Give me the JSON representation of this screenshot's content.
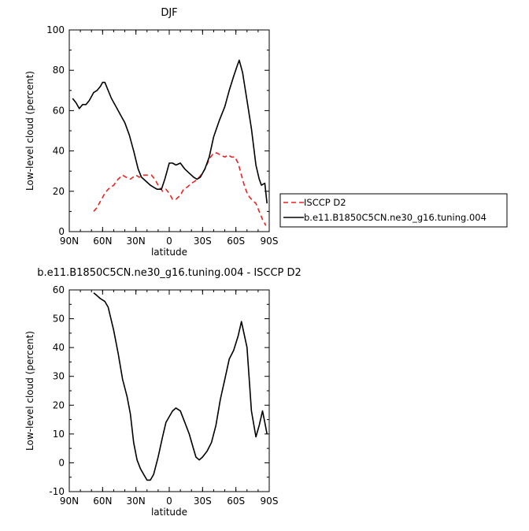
{
  "chart_data": [
    {
      "type": "line",
      "title": "DJF",
      "xlabel": "latitude",
      "ylabel": "Low-level cloud (percent)",
      "xlim": [
        90,
        -90
      ],
      "ylim": [
        0,
        100
      ],
      "x_ticks": [
        {
          "value": 90,
          "label": "90N"
        },
        {
          "value": 60,
          "label": "60N"
        },
        {
          "value": 30,
          "label": "30N"
        },
        {
          "value": 0,
          "label": "0"
        },
        {
          "value": -30,
          "label": "30S"
        },
        {
          "value": -60,
          "label": "60S"
        },
        {
          "value": -90,
          "label": "90S"
        }
      ],
      "y_ticks": [
        0,
        20,
        40,
        60,
        80,
        100
      ],
      "legend_position": "right",
      "series": [
        {
          "name": "ISCCP D2",
          "color": "#e8231f",
          "dash": "dashed",
          "x": [
            68,
            65,
            62,
            58,
            55,
            50,
            46,
            42,
            39,
            35,
            30,
            27,
            23,
            19,
            16,
            13,
            10,
            6,
            3,
            0,
            -3,
            -6,
            -10,
            -13,
            -16,
            -20,
            -23,
            -27,
            -30,
            -33,
            -36,
            -40,
            -43,
            -46,
            -50,
            -53,
            -56,
            -59,
            -62,
            -65,
            -68,
            -71,
            -74,
            -78,
            -81,
            -84,
            -87
          ],
          "y": [
            10,
            12,
            15,
            19,
            21,
            23,
            26,
            28,
            27,
            26,
            28,
            27,
            28,
            28,
            28,
            26,
            23,
            20,
            21,
            19,
            16,
            16,
            18,
            21,
            22,
            24,
            25,
            27,
            29,
            32,
            36,
            39,
            39,
            38,
            37,
            38,
            37,
            37,
            34,
            28,
            22,
            18,
            16,
            14,
            10,
            6,
            3
          ]
        },
        {
          "name": "b.e11.B1850C5CN.ne30_g16.tuning.004",
          "color": "#000000",
          "dash": "solid",
          "x": [
            87,
            84,
            81,
            78,
            75,
            72,
            68,
            65,
            62,
            60,
            58,
            55,
            52,
            48,
            44,
            40,
            36,
            32,
            28,
            25,
            21,
            17,
            14,
            11,
            7,
            4,
            0,
            -3,
            -6,
            -10,
            -14,
            -18,
            -22,
            -25,
            -28,
            -32,
            -36,
            -40,
            -45,
            -50,
            -54,
            -58,
            -61,
            -63,
            -66,
            -70,
            -74,
            -78,
            -81,
            -83,
            -86,
            -88
          ],
          "y": [
            66,
            64,
            61,
            63,
            63,
            65,
            69,
            70,
            72,
            74,
            74,
            70,
            66,
            62,
            58,
            54,
            48,
            40,
            31,
            27,
            25,
            23,
            22,
            21,
            21,
            26,
            34,
            34,
            33,
            34,
            31,
            29,
            27,
            26,
            27,
            31,
            37,
            47,
            55,
            62,
            70,
            77,
            82,
            85,
            79,
            65,
            51,
            33,
            26,
            23,
            24,
            14
          ]
        }
      ]
    },
    {
      "type": "line",
      "title": "b.e11.B1850C5CN.ne30_g16.tuning.004 - ISCCP D2",
      "xlabel": "latitude",
      "ylabel": "Low-level cloud (percent)",
      "xlim": [
        90,
        -90
      ],
      "ylim": [
        -10,
        60
      ],
      "x_ticks": [
        {
          "value": 90,
          "label": "90N"
        },
        {
          "value": 60,
          "label": "60N"
        },
        {
          "value": 30,
          "label": "30N"
        },
        {
          "value": 0,
          "label": "0"
        },
        {
          "value": -30,
          "label": "30S"
        },
        {
          "value": -60,
          "label": "60S"
        },
        {
          "value": -90,
          "label": "90S"
        }
      ],
      "y_ticks": [
        -10,
        0,
        10,
        20,
        30,
        40,
        50,
        60
      ],
      "series": [
        {
          "color": "#000000",
          "dash": "solid",
          "x": [
            68,
            65,
            62,
            58,
            55,
            50,
            46,
            42,
            38,
            35,
            32,
            29,
            26,
            23,
            20,
            17,
            14,
            10,
            6,
            3,
            0,
            -3,
            -6,
            -10,
            -14,
            -18,
            -21,
            -24,
            -27,
            -30,
            -34,
            -38,
            -42,
            -46,
            -50,
            -54,
            -58,
            -62,
            -65,
            -70,
            -74,
            -78,
            -81,
            -84,
            -86,
            -88
          ],
          "y": [
            59,
            58,
            57,
            56,
            54,
            46,
            38,
            29,
            23,
            17,
            7,
            1,
            -2,
            -4,
            -6,
            -6,
            -4,
            2,
            9,
            14,
            16,
            18,
            19,
            18,
            14,
            10,
            6,
            2,
            1,
            2,
            4,
            7,
            13,
            22,
            29,
            36,
            39,
            44,
            49,
            40,
            18,
            9,
            13,
            18,
            14,
            10
          ]
        }
      ]
    }
  ]
}
